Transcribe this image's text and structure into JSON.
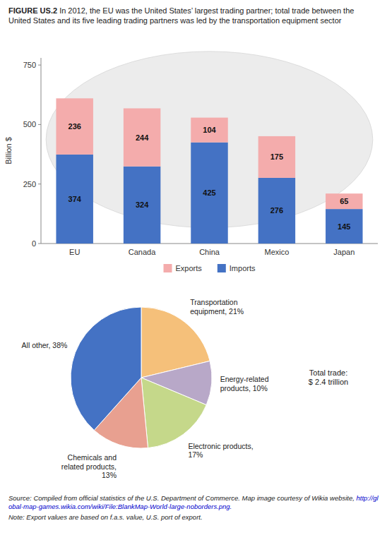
{
  "chart_data": [
    {
      "type": "bar",
      "title": "FIGURE US.2",
      "subtitle": " In 2012, the EU was the United States’ largest trading partner; total trade\nbetween the United States and its five leading trading partners was led by the transportation\nequipment sector",
      "categories": [
        "EU",
        "Canada",
        "China",
        "Mexico",
        "Japan"
      ],
      "series": [
        {
          "name": "Imports",
          "color": "#4472C4",
          "values": [
            374,
            324,
            425,
            276,
            145
          ]
        },
        {
          "name": "Exports",
          "color": "#F4ACAC",
          "values": [
            236,
            244,
            104,
            175,
            65
          ]
        }
      ],
      "y_label": "Billion $",
      "ylim": [
        0,
        780
      ],
      "yticks": [
        0,
        250,
        500,
        750
      ],
      "stacked": true,
      "data_labels": true,
      "grid": false,
      "legend": "bottom"
    },
    {
      "type": "pie",
      "categories": [
        "Transportation\nequipment, 21%",
        "Energy-related\nproducts, 10%",
        "Electronic products,\n17%",
        "Chemicals and\nrelated products,\n13%",
        "All other, 38%"
      ],
      "values": [
        21,
        10,
        17,
        13,
        38
      ],
      "colors": [
        "#F5C07A",
        "#B8A8C8",
        "#C5D88A",
        "#E8A090",
        "#4472C4"
      ],
      "annotations": [
        "Total trade:\n$ 2.4 trillion",
        "Source:  Compiled from official statistics of the U.S. Department of Commerce. Map image",
        "courtesy of Wikia website, ",
        "http://global-map-games.wikia.com/wiki/File:BlankMap-World-large-noborders.png.",
        "Note:  Export values are based on f.a.s. value, U.S. port of export."
      ]
    }
  ]
}
